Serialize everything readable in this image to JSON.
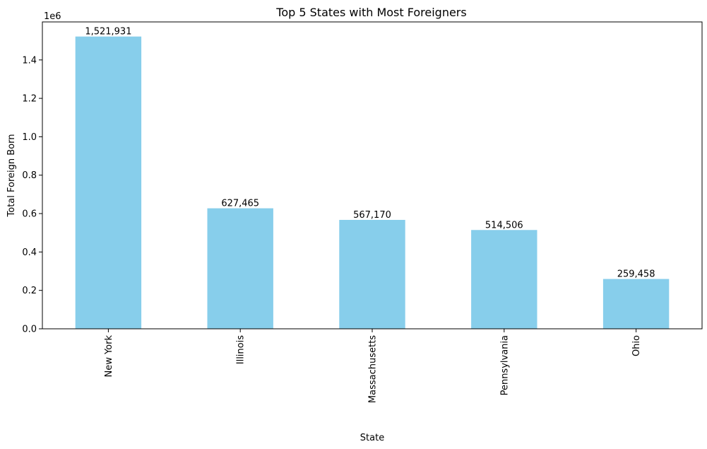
{
  "chart_data": {
    "type": "bar",
    "title": "Top 5 States with Most Foreigners",
    "xlabel": "State",
    "ylabel": "Total Foreign Born",
    "y_offset_text": "1e6",
    "categories": [
      "New York",
      "Illinois",
      "Massachusetts",
      "Pennsylvania",
      "Ohio"
    ],
    "values": [
      1521931,
      627465,
      567170,
      514506,
      259458
    ],
    "data_labels": [
      "1,521,931",
      "627,465",
      "567,170",
      "514,506",
      "259,458"
    ],
    "y_ticks": [
      0,
      200000,
      400000,
      600000,
      800000,
      1000000,
      1200000,
      1400000
    ],
    "y_tick_labels": [
      "0.0",
      "0.2",
      "0.4",
      "0.6",
      "0.8",
      "1.0",
      "1.2",
      "1.4"
    ],
    "ylim": [
      0,
      1598028
    ],
    "grid": false,
    "bar_color": "#87CEEB"
  }
}
